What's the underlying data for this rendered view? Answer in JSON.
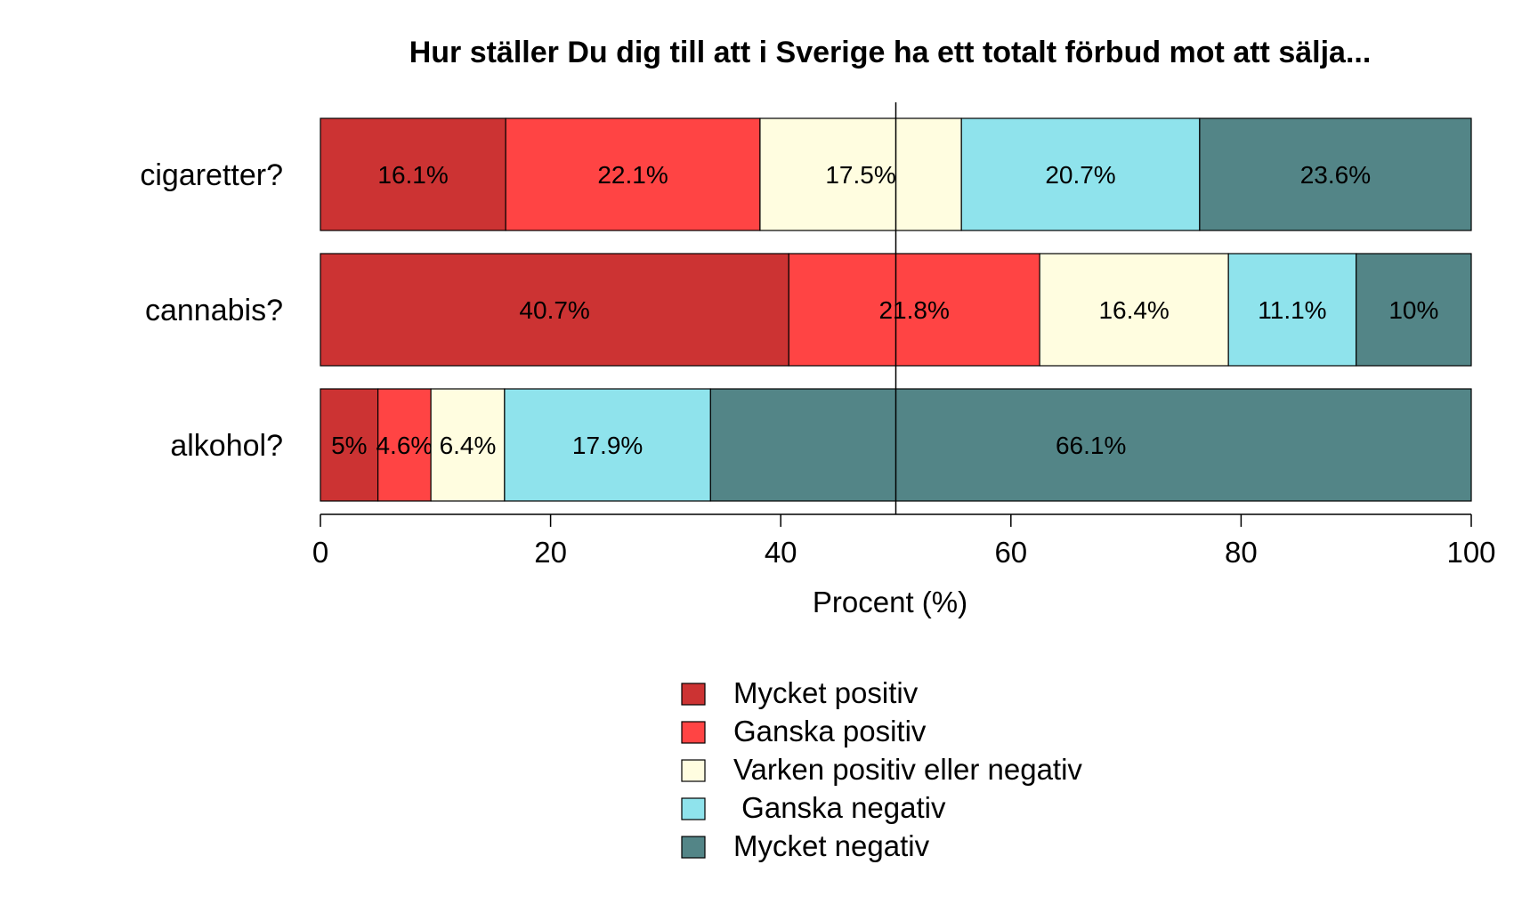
{
  "chart_data": {
    "type": "bar",
    "orientation": "horizontal",
    "stacked": true,
    "title": "Hur ställer Du dig till att i Sverige ha ett totalt förbud mot att sälja...",
    "xlabel": "Procent (%)",
    "ylabel": "",
    "xlim": [
      0,
      100
    ],
    "xticks": [
      "0",
      "20",
      "40",
      "60",
      "80",
      "100"
    ],
    "reference_line": 50,
    "grid": false,
    "legend_position": "bottom",
    "categories": [
      "cigaretter?",
      "cannabis?",
      "alkohol?"
    ],
    "series": [
      {
        "name": "Mycket positiv",
        "color": "#cc3333",
        "values": [
          16.1,
          40.7,
          5.0
        ],
        "labels": [
          "16.1%",
          "40.7%",
          "5%"
        ]
      },
      {
        "name": "Ganska positiv",
        "color": "#ff4444",
        "values": [
          22.1,
          21.8,
          4.6
        ],
        "labels": [
          "22.1%",
          "21.8%",
          "4.6%"
        ]
      },
      {
        "name": "Varken positiv eller negativ",
        "color": "#fffde0",
        "values": [
          17.5,
          16.4,
          6.4
        ],
        "labels": [
          "17.5%",
          "16.4%",
          "6.4%"
        ]
      },
      {
        "name": " Ganska negativ",
        "color": "#8fe3ec",
        "values": [
          20.7,
          11.1,
          17.9
        ],
        "labels": [
          "20.7%",
          "11.1%",
          "17.9%"
        ]
      },
      {
        "name": "Mycket negativ",
        "color": "#538587",
        "values": [
          23.6,
          10.0,
          66.1
        ],
        "labels": [
          "23.6%",
          "10%",
          "66.1%"
        ]
      }
    ]
  }
}
